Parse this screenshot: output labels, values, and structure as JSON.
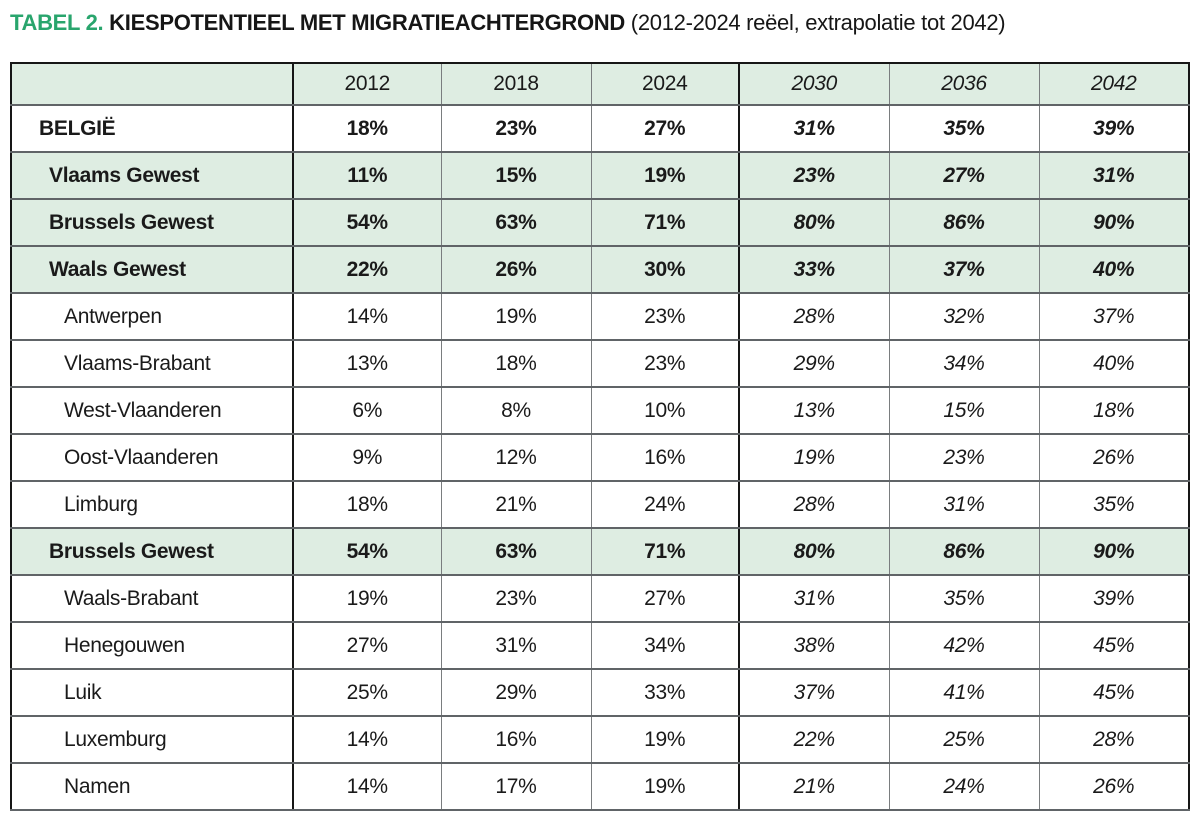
{
  "title": {
    "tag": "TABEL 2.",
    "main": "KIESPOTENTIEEL MET MIGRATIEACHTERGROND",
    "sub": "(2012-2024 reëel, extrapolatie tot 2042)"
  },
  "colors": {
    "accent_green": "#29a56d",
    "row_highlight_green": "#deede2",
    "thick_border": "#161616",
    "thin_border": "#7a7d7f",
    "horizontal_border": "#606467",
    "text": "#1a1a1a"
  },
  "chart_data": {
    "type": "table",
    "title": "TABEL 2. KIESPOTENTIEEL MET MIGRATIEACHTERGROND (2012-2024 reëel, extrapolatie tot 2042)",
    "columns": [
      "",
      "2012",
      "2018",
      "2024",
      "2030",
      "2036",
      "2042"
    ],
    "real_columns": [
      "2012",
      "2018",
      "2024"
    ],
    "extrapolated_columns": [
      "2030",
      "2036",
      "2042"
    ],
    "rows": [
      {
        "label": "BELGIË",
        "style": "country",
        "values": [
          "18%",
          "23%",
          "27%",
          "31%",
          "35%",
          "39%"
        ]
      },
      {
        "label": "Vlaams Gewest",
        "style": "region",
        "values": [
          "11%",
          "15%",
          "19%",
          "23%",
          "27%",
          "31%"
        ]
      },
      {
        "label": "Brussels Gewest",
        "style": "region",
        "values": [
          "54%",
          "63%",
          "71%",
          "80%",
          "86%",
          "90%"
        ]
      },
      {
        "label": "Waals Gewest",
        "style": "region",
        "values": [
          "22%",
          "26%",
          "30%",
          "33%",
          "37%",
          "40%"
        ]
      },
      {
        "label": "Antwerpen",
        "style": "province",
        "values": [
          "14%",
          "19%",
          "23%",
          "28%",
          "32%",
          "37%"
        ]
      },
      {
        "label": "Vlaams-Brabant",
        "style": "province",
        "values": [
          "13%",
          "18%",
          "23%",
          "29%",
          "34%",
          "40%"
        ]
      },
      {
        "label": "West-Vlaanderen",
        "style": "province",
        "values": [
          "6%",
          "8%",
          "10%",
          "13%",
          "15%",
          "18%"
        ]
      },
      {
        "label": "Oost-Vlaanderen",
        "style": "province",
        "values": [
          "9%",
          "12%",
          "16%",
          "19%",
          "23%",
          "26%"
        ]
      },
      {
        "label": "Limburg",
        "style": "province",
        "values": [
          "18%",
          "21%",
          "24%",
          "28%",
          "31%",
          "35%"
        ]
      },
      {
        "label": "Brussels Gewest",
        "style": "region",
        "values": [
          "54%",
          "63%",
          "71%",
          "80%",
          "86%",
          "90%"
        ]
      },
      {
        "label": "Waals-Brabant",
        "style": "province",
        "values": [
          "19%",
          "23%",
          "27%",
          "31%",
          "35%",
          "39%"
        ]
      },
      {
        "label": "Henegouwen",
        "style": "province",
        "values": [
          "27%",
          "31%",
          "34%",
          "38%",
          "42%",
          "45%"
        ]
      },
      {
        "label": "Luik",
        "style": "province",
        "values": [
          "25%",
          "29%",
          "33%",
          "37%",
          "41%",
          "45%"
        ]
      },
      {
        "label": "Luxemburg",
        "style": "province",
        "values": [
          "14%",
          "16%",
          "19%",
          "22%",
          "25%",
          "28%"
        ]
      },
      {
        "label": "Namen",
        "style": "province",
        "values": [
          "14%",
          "17%",
          "19%",
          "21%",
          "24%",
          "26%"
        ]
      }
    ]
  }
}
